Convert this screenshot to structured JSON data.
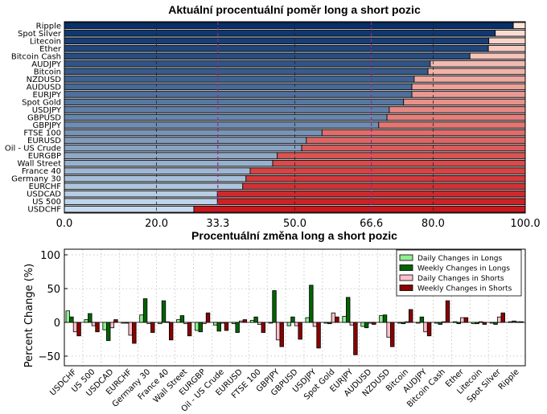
{
  "chart_data": [
    {
      "type": "bar",
      "orientation": "horizontal-stacked",
      "title": "Aktuální procentuální poměr long a short pozic",
      "xlim": [
        0,
        100
      ],
      "xticks": [
        "0.0",
        "20.0",
        "33.3",
        "50.0",
        "66.6",
        "80.0",
        "100.0"
      ],
      "highlight_ticks": [
        "33.3",
        "66.6"
      ],
      "highlight_color": "#8b2c8b",
      "grid": true,
      "categories": [
        "Ripple",
        "Spot Silver",
        "Litecoin",
        "Ether",
        "Bitcoin Cash",
        "AUDJPY",
        "Bitcoin",
        "NZDUSD",
        "AUDUSD",
        "EURJPY",
        "Spot Gold",
        "USDJPY",
        "GBPUSD",
        "GBPJPY",
        "FTSE 100",
        "EURUSD",
        "Oil - US Crude",
        "EURGBP",
        "Wall Street",
        "France 40",
        "Germany 30",
        "EURCHF",
        "USDCAD",
        "US 500",
        "USDCHF"
      ],
      "series": [
        {
          "name": "Long",
          "values": [
            97.4,
            93.5,
            92.1,
            92.0,
            88.0,
            79.4,
            78.9,
            75.9,
            75.4,
            75.4,
            73.6,
            70.5,
            70.0,
            68.2,
            55.9,
            52.5,
            51.5,
            46.2,
            45.2,
            40.3,
            39.4,
            38.7,
            33.2,
            33.2,
            28.1
          ]
        },
        {
          "name": "Short",
          "values": [
            2.6,
            6.5,
            7.9,
            8.0,
            12.0,
            20.6,
            21.1,
            24.1,
            24.6,
            24.6,
            26.4,
            29.5,
            30.0,
            31.8,
            44.1,
            47.5,
            48.5,
            53.8,
            54.8,
            59.7,
            60.6,
            61.3,
            66.8,
            66.8,
            71.9
          ]
        }
      ]
    },
    {
      "type": "bar",
      "orientation": "vertical-grouped",
      "title": "Procentuální změna long a short pozic",
      "ylabel": "Percent Change (%)",
      "ylim": [
        -65,
        110
      ],
      "yticks": [
        "100",
        "50",
        "0",
        "−50"
      ],
      "grid": true,
      "legend_position": "top-right",
      "categories": [
        "USDCHF",
        "US 500",
        "USDCAD",
        "EURCHF",
        "Germany 30",
        "France 40",
        "Wall Street",
        "EURGBP",
        "Oil - US Crude",
        "EURUSD",
        "FTSE 100",
        "GBPJPY",
        "GBPUSD",
        "USDJPY",
        "Spot Gold",
        "EURJPY",
        "AUDUSD",
        "NZDUSD",
        "Bitcoin",
        "AUDJPY",
        "Bitcoin Cash",
        "Ether",
        "Litecoin",
        "Spot Silver",
        "Ripple"
      ],
      "series": [
        {
          "name": "Daily Changes in Longs",
          "color": "#90ee90",
          "values": [
            17,
            4,
            -11,
            -1,
            11,
            -2,
            4,
            -12,
            -4,
            -2,
            3,
            -1,
            -5,
            7,
            -1,
            9,
            -6,
            10,
            -1,
            -1,
            -1,
            1,
            -2,
            -1,
            1
          ]
        },
        {
          "name": "Weekly Changes in Longs",
          "color": "#006400",
          "values": [
            8,
            13,
            -27,
            -1,
            35,
            32,
            10,
            -14,
            -13,
            -15,
            8,
            47,
            8,
            55,
            -2,
            37,
            -8,
            11,
            -2,
            8,
            -3,
            -2,
            -2,
            -3,
            2
          ]
        },
        {
          "name": "Daily Changes in Shorts",
          "color": "#ffc0cb",
          "values": [
            -14,
            -5,
            -8,
            -19,
            -2,
            1,
            -2,
            -2,
            -1,
            2,
            -3,
            -26,
            -5,
            -6,
            14,
            -4,
            -1,
            -22,
            1,
            -14,
            1,
            7,
            1,
            8,
            1
          ]
        },
        {
          "name": "Weekly Changes in Shorts",
          "color": "#8b0000",
          "values": [
            -20,
            -14,
            4,
            -31,
            -15,
            -26,
            -20,
            14,
            -12,
            4,
            -15,
            -36,
            -25,
            -38,
            8,
            -48,
            -3,
            -36,
            19,
            -20,
            32,
            7,
            -3,
            14,
            1
          ]
        }
      ]
    }
  ]
}
